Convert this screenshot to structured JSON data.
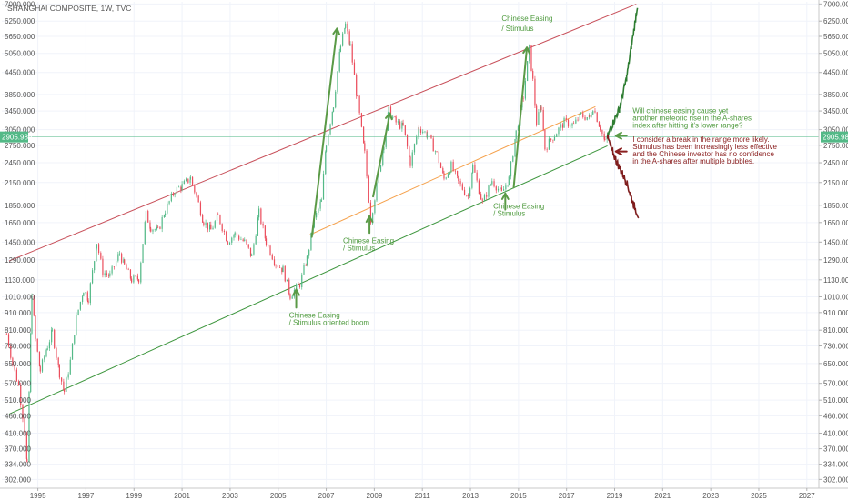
{
  "chart_data": {
    "type": "line",
    "title": "SHANGHAI COMPOSITE, 1W, TVC",
    "xlabel": "",
    "ylabel": "",
    "y_scale": "log",
    "xlim": [
      1993.5,
      2027.5
    ],
    "ylim": [
      285,
      7100
    ],
    "x_ticks": [
      "1995",
      "1997",
      "1999",
      "2001",
      "2003",
      "2005",
      "2007",
      "2009",
      "2011",
      "2013",
      "2015",
      "2017",
      "2019",
      "2021",
      "2023",
      "2025",
      "2027"
    ],
    "y_ticks": [
      "7000.000",
      "6250.000",
      "5650.000",
      "5050.000",
      "4450.000",
      "3850.000",
      "3450.000",
      "3050.000",
      "2750.000",
      "2450.000",
      "2150.000",
      "1850.000",
      "1650.000",
      "1450.000",
      "1290.000",
      "1130.000",
      "1010.000",
      "910.000",
      "810.000",
      "730.000",
      "650.000",
      "570.000",
      "510.000",
      "460.000",
      "410.000",
      "370.000",
      "334.000",
      "302.000"
    ],
    "current_price": "2905.986",
    "series": [
      {
        "values": [
          [
            1993.7,
            790
          ],
          [
            1993.95,
            650
          ],
          [
            1994.2,
            560
          ],
          [
            1994.45,
            420
          ],
          [
            1994.55,
            330
          ],
          [
            1994.7,
            780
          ],
          [
            1994.75,
            1040
          ],
          [
            1994.9,
            760
          ],
          [
            1995.1,
            620
          ],
          [
            1995.4,
            730
          ],
          [
            1995.6,
            800
          ],
          [
            1995.9,
            610
          ],
          [
            1996.1,
            540
          ],
          [
            1996.35,
            660
          ],
          [
            1996.6,
            880
          ],
          [
            1996.9,
            1060
          ],
          [
            1997.1,
            1000
          ],
          [
            1997.35,
            1290
          ],
          [
            1997.45,
            1450
          ],
          [
            1997.7,
            1190
          ],
          [
            1998.0,
            1160
          ],
          [
            1998.4,
            1350
          ],
          [
            1998.6,
            1240
          ],
          [
            1998.9,
            1130
          ],
          [
            1999.2,
            1140
          ],
          [
            1999.5,
            1740
          ],
          [
            1999.7,
            1600
          ],
          [
            2000.0,
            1560
          ],
          [
            2000.3,
            1790
          ],
          [
            2000.7,
            2040
          ],
          [
            2001.0,
            2100
          ],
          [
            2001.35,
            2215
          ],
          [
            2001.6,
            1960
          ],
          [
            2001.9,
            1660
          ],
          [
            2002.2,
            1570
          ],
          [
            2002.5,
            1720
          ],
          [
            2002.9,
            1460
          ],
          [
            2003.2,
            1530
          ],
          [
            2003.6,
            1450
          ],
          [
            2003.9,
            1320
          ],
          [
            2004.2,
            1760
          ],
          [
            2004.5,
            1450
          ],
          [
            2004.9,
            1260
          ],
          [
            2005.2,
            1210
          ],
          [
            2005.5,
            1020
          ],
          [
            2005.9,
            1100
          ],
          [
            2006.2,
            1300
          ],
          [
            2006.5,
            1680
          ],
          [
            2006.8,
            1900
          ],
          [
            2007.0,
            2800
          ],
          [
            2007.3,
            3600
          ],
          [
            2007.6,
            5300
          ],
          [
            2007.8,
            6100
          ],
          [
            2008.0,
            5300
          ],
          [
            2008.3,
            3700
          ],
          [
            2008.6,
            2600
          ],
          [
            2008.85,
            1680
          ],
          [
            2009.1,
            2100
          ],
          [
            2009.4,
            2800
          ],
          [
            2009.6,
            3450
          ],
          [
            2009.9,
            3200
          ],
          [
            2010.2,
            3100
          ],
          [
            2010.5,
            2450
          ],
          [
            2010.85,
            3100
          ],
          [
            2011.2,
            2950
          ],
          [
            2011.6,
            2600
          ],
          [
            2011.9,
            2200
          ],
          [
            2012.2,
            2400
          ],
          [
            2012.5,
            2150
          ],
          [
            2012.9,
            1960
          ],
          [
            2013.1,
            2400
          ],
          [
            2013.5,
            1880
          ],
          [
            2013.9,
            2180
          ],
          [
            2014.3,
            2000
          ],
          [
            2014.6,
            2200
          ],
          [
            2014.9,
            3000
          ],
          [
            2015.2,
            3800
          ],
          [
            2015.45,
            5200
          ],
          [
            2015.6,
            4200
          ],
          [
            2015.75,
            3200
          ],
          [
            2015.95,
            3550
          ],
          [
            2016.1,
            2700
          ],
          [
            2016.5,
            2950
          ],
          [
            2016.9,
            3200
          ],
          [
            2017.3,
            3150
          ],
          [
            2017.6,
            3350
          ],
          [
            2017.95,
            3300
          ],
          [
            2018.1,
            3550
          ],
          [
            2018.4,
            3100
          ],
          [
            2018.6,
            2800
          ],
          [
            2018.7,
            2906
          ]
        ]
      },
      {
        "values": [
          [
            2018.7,
            2906
          ],
          [
            2018.9,
            3150
          ],
          [
            2019.2,
            3500
          ],
          [
            2019.5,
            4300
          ],
          [
            2019.7,
            5300
          ],
          [
            2019.85,
            6200
          ],
          [
            2019.95,
            6950
          ]
        ]
      },
      {
        "values": [
          [
            2018.7,
            2906
          ],
          [
            2018.9,
            2650
          ],
          [
            2019.1,
            2450
          ],
          [
            2019.3,
            2300
          ],
          [
            2019.5,
            2150
          ],
          [
            2019.8,
            1850
          ],
          [
            2020.0,
            1720
          ]
        ]
      }
    ],
    "trendlines": [
      {
        "from": [
          1993.8,
          1280
        ],
        "to": [
          2019.9,
          6990
        ],
        "color": "#c8505a"
      },
      {
        "from": [
          1993.8,
          465
        ],
        "to": [
          2018.7,
          2740
        ],
        "color": "#3e963e"
      },
      {
        "from": [
          2006.3,
          1520
        ],
        "to": [
          2018.2,
          3550
        ],
        "color": "#f5a04a"
      }
    ],
    "arrows": [
      {
        "from": [
          2006.4,
          1500
        ],
        "to": [
          2007.45,
          5950
        ],
        "color": "#5a9a46"
      },
      {
        "from": [
          2008.95,
          1960
        ],
        "to": [
          2009.65,
          3400
        ],
        "color": "#5a9a46"
      },
      {
        "from": [
          2014.8,
          2080
        ],
        "to": [
          2015.35,
          5250
        ],
        "color": "#5a9a46"
      },
      {
        "from": [
          2005.75,
          940
        ],
        "to": [
          2005.75,
          1060
        ],
        "color": "#5a9a46"
      },
      {
        "from": [
          2008.8,
          1540
        ],
        "to": [
          2008.8,
          1720
        ],
        "color": "#5a9a46"
      },
      {
        "from": [
          2014.45,
          1800
        ],
        "to": [
          2014.45,
          2000
        ],
        "color": "#5a9a46"
      },
      {
        "from": [
          2019.5,
          2930
        ],
        "to": [
          2019.05,
          2930
        ],
        "color": "#5a9a46"
      },
      {
        "from": [
          2019.5,
          2640
        ],
        "to": [
          2019.05,
          2640
        ],
        "color": "#8b2020"
      }
    ],
    "annotations": [
      {
        "lines": [
          "Chinese Easing",
          "/ Stimulus"
        ],
        "at": [
          2014.3,
          6250
        ],
        "color": "#4e9a3e",
        "size": "large"
      },
      {
        "lines": [
          "Chinese Easing",
          "/ Stimulus"
        ],
        "at": [
          2007.7,
          1440
        ],
        "color": "#4e9a3e",
        "size": "small"
      },
      {
        "lines": [
          "Chinese Easing",
          "/ Stimulus"
        ],
        "at": [
          2013.95,
          1810
        ],
        "color": "#4e9a3e",
        "size": "small"
      },
      {
        "lines": [
          "Chinese Easing",
          "/ Stimulus oriented boom"
        ],
        "at": [
          2005.45,
          880
        ],
        "color": "#4e9a3e",
        "size": "small"
      },
      {
        "lines": [
          "Will chinese easing cause yet",
          "another meteoric rise in the A-shares",
          "index after hitting it's lower range?"
        ],
        "at": [
          2019.75,
          3400
        ],
        "color": "#4e9a3e",
        "size": "small"
      },
      {
        "lines": [
          "I consider a break in the range more likely.",
          "Stimulus has been increasingly less effective",
          "and the Chinese investor has no confidence",
          "in the A-shares after multiple bubbles."
        ],
        "at": [
          2019.75,
          2810
        ],
        "color": "#8b2020",
        "size": "small"
      }
    ],
    "grid": true,
    "legend": "none",
    "colors": {
      "up": "#53b987",
      "down": "#eb4d5c",
      "price_line": "#53b987",
      "bull_path": "#2e7d32",
      "bear_path": "#7f1d1d"
    }
  }
}
